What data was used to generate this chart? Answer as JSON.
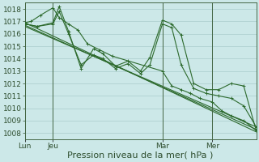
{
  "background_color": "#cce8e8",
  "grid_color": "#aacccc",
  "line_color": "#2d6a2d",
  "xlabel": "Pression niveau de la mer( hPa )",
  "xlabel_fontsize": 8,
  "tick_label_fontsize": 6.5,
  "ylim": [
    1007.5,
    1018.5
  ],
  "yticks": [
    1008,
    1009,
    1010,
    1011,
    1012,
    1013,
    1014,
    1015,
    1016,
    1017,
    1018
  ],
  "xlim": [
    0,
    74
  ],
  "xtick_positions": [
    0,
    9,
    44,
    60
  ],
  "xtick_labels": [
    "Lun",
    "Jeu",
    "Mar",
    "Mer"
  ],
  "vline_positions": [
    0,
    9,
    44,
    60
  ],
  "straight_line": {
    "x": [
      0,
      74
    ],
    "y": [
      1016.9,
      1008.1
    ]
  },
  "straight_line2": {
    "x": [
      0,
      74
    ],
    "y": [
      1016.7,
      1008.3
    ]
  },
  "straight_line3": {
    "x": [
      0,
      74
    ],
    "y": [
      1016.6,
      1008.5
    ]
  },
  "jagged1_x": [
    0,
    2,
    5,
    9,
    11,
    14,
    17,
    20,
    24,
    28,
    44,
    47,
    50,
    53,
    56,
    60,
    63,
    66,
    70,
    74
  ],
  "jagged1_y": [
    1016.9,
    1017.0,
    1017.5,
    1018.1,
    1017.3,
    1016.8,
    1016.3,
    1015.2,
    1014.7,
    1014.2,
    1013.0,
    1011.8,
    1011.5,
    1011.2,
    1010.8,
    1010.5,
    1009.8,
    1009.4,
    1009.0,
    1008.2
  ],
  "jagged2_x": [
    0,
    4,
    9,
    11,
    14,
    18,
    22,
    25,
    29,
    33,
    37,
    40,
    44,
    47,
    50,
    54,
    58,
    62,
    66,
    70,
    74
  ],
  "jagged2_y": [
    1016.8,
    1016.6,
    1016.9,
    1018.2,
    1016.2,
    1013.2,
    1014.8,
    1014.4,
    1013.4,
    1013.8,
    1013.0,
    1014.1,
    1017.1,
    1016.8,
    1015.9,
    1012.0,
    1011.5,
    1011.5,
    1012.0,
    1011.8,
    1008.2
  ],
  "jagged3_x": [
    0,
    4,
    9,
    11,
    14,
    18,
    22,
    25,
    29,
    33,
    37,
    40,
    44,
    47,
    50,
    54,
    58,
    62,
    66,
    70,
    74
  ],
  "jagged3_y": [
    1016.8,
    1016.6,
    1016.8,
    1017.8,
    1016.0,
    1013.5,
    1014.3,
    1014.0,
    1013.2,
    1013.6,
    1012.8,
    1013.5,
    1016.8,
    1016.5,
    1013.5,
    1011.6,
    1011.2,
    1011.0,
    1010.8,
    1010.2,
    1008.5
  ]
}
